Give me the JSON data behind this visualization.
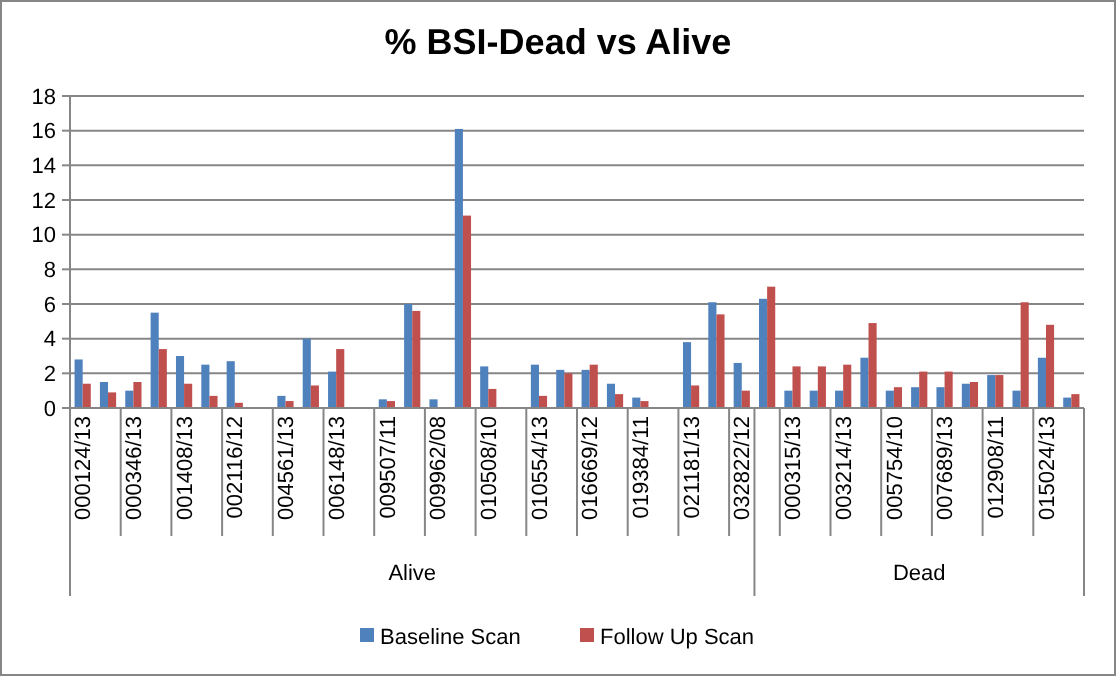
{
  "chart_data": {
    "type": "bar",
    "title": "% BSI-Dead vs Alive",
    "categories": [
      "000124/13",
      null,
      "000346/13",
      null,
      "001408/13",
      null,
      "002116/12",
      null,
      "004561/13",
      null,
      "006148/13",
      null,
      "009507/11",
      null,
      "009962/08",
      null,
      "010508/10",
      null,
      "010554/13",
      null,
      "016669/12",
      null,
      "019384/11",
      null,
      "021181/13",
      null,
      "032822/12",
      null,
      "000315/13",
      null,
      "003214/13",
      null,
      "005754/10",
      null,
      "007689/13",
      null,
      "012908/11",
      null,
      "015024/13",
      null
    ],
    "series": [
      {
        "name": "Baseline Scan",
        "color": "#4f81bd",
        "values": [
          2.8,
          1.5,
          1.0,
          5.5,
          3.0,
          2.5,
          2.7,
          null,
          0.7,
          4.0,
          2.1,
          null,
          0.5,
          6.0,
          0.5,
          16.1,
          2.4,
          null,
          2.5,
          2.2,
          2.2,
          1.4,
          0.6,
          null,
          3.8,
          6.1,
          2.6,
          6.3,
          1.0,
          1.0,
          1.0,
          2.9,
          1.0,
          1.2,
          1.2,
          1.4,
          1.9,
          1.0,
          2.9,
          0.6
        ]
      },
      {
        "name": "Follow Up Scan",
        "color": "#c0504d",
        "values": [
          1.4,
          0.9,
          1.5,
          3.4,
          1.4,
          0.7,
          0.3,
          null,
          0.4,
          1.3,
          3.4,
          null,
          0.4,
          5.6,
          null,
          11.1,
          1.1,
          null,
          0.7,
          2.0,
          2.5,
          0.8,
          0.4,
          null,
          1.3,
          5.4,
          1.0,
          7.0,
          2.4,
          2.4,
          2.5,
          4.9,
          1.2,
          2.1,
          2.1,
          1.5,
          1.9,
          6.1,
          4.8,
          0.8
        ]
      }
    ],
    "annotations": [
      "Alive",
      "Dead"
    ],
    "ylim": [
      0,
      18
    ],
    "yticks": [
      0,
      2,
      4,
      6,
      8,
      10,
      12,
      14,
      16,
      18
    ],
    "grid": "y",
    "legend": "bottom"
  }
}
